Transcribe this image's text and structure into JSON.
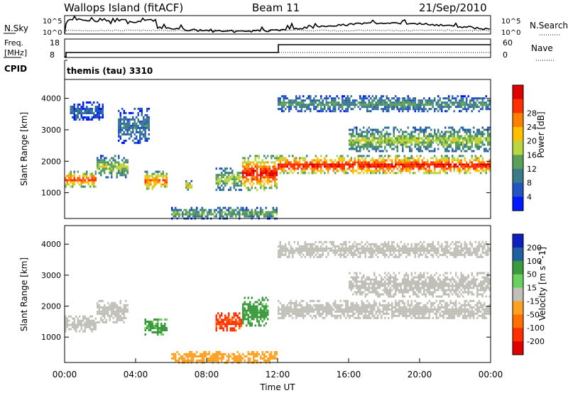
{
  "header": {
    "title": "Wallops Island (fitACF)",
    "beam": "Beam 11",
    "date": "21/Sep/2010"
  },
  "noise_panel": {
    "left_label": "N.Sky",
    "left_ticks": [
      "10^5",
      "10^0"
    ],
    "right_ticks": [
      "10^5",
      "10^0"
    ],
    "right_label": "N.Search"
  },
  "freq_panel": {
    "left_label_line1": "Freq.",
    "left_label_line2": "[MHz]",
    "left_ticks": [
      "18",
      "8"
    ],
    "right_ticks": [
      "60",
      "0"
    ],
    "right_label": "Nave"
  },
  "cpid_panel": {
    "label": "CPID",
    "value": "themis (tau) 3310"
  },
  "colors": {
    "power_scale": [
      "#0018ff",
      "#2255c0",
      "#3a7a8a",
      "#5aa05a",
      "#b8d640",
      "#ffc000",
      "#ff8000",
      "#ff3000",
      "#e00000"
    ],
    "velocity_scale": [
      "#1020c0",
      "#2060a0",
      "#3c9a3c",
      "#6ad060",
      "#c0c0b8",
      "#ffa020",
      "#ff7000",
      "#ff3000",
      "#e00000"
    ]
  },
  "chart_data": [
    {
      "type": "heatmap",
      "name": "power-panel",
      "ylabel": "Slant Range [km]",
      "ylim": [
        180,
        4600
      ],
      "y_ticks": [
        1000,
        2000,
        3000,
        4000
      ],
      "xlim": [
        0,
        24
      ],
      "colorbar": {
        "label": "Power [dB]",
        "range": [
          0,
          32
        ],
        "ticks": [
          "4",
          "8",
          "12",
          "16",
          "20",
          "24",
          "28"
        ]
      },
      "blobs": [
        {
          "t0": 0.0,
          "t1": 1.8,
          "r0": 1200,
          "r1": 1700,
          "power": 24
        },
        {
          "t0": 1.8,
          "t1": 3.6,
          "r0": 1500,
          "r1": 2200,
          "power": 14
        },
        {
          "t0": 0.3,
          "t1": 2.2,
          "r0": 3300,
          "r1": 3900,
          "power": 6
        },
        {
          "t0": 3.0,
          "t1": 4.8,
          "r0": 2600,
          "r1": 3700,
          "power": 8
        },
        {
          "t0": 4.5,
          "t1": 5.8,
          "r0": 1100,
          "r1": 1700,
          "power": 22
        },
        {
          "t0": 6.8,
          "t1": 7.2,
          "r0": 1100,
          "r1": 1400,
          "power": 18
        },
        {
          "t0": 8.5,
          "t1": 10.0,
          "r0": 1100,
          "r1": 1800,
          "power": 14
        },
        {
          "t0": 10.0,
          "t1": 12.0,
          "r0": 1100,
          "r1": 2200,
          "power": 26
        },
        {
          "t0": 12.0,
          "t1": 24.0,
          "r0": 1600,
          "r1": 2200,
          "power": 26
        },
        {
          "t0": 16.0,
          "t1": 24.0,
          "r0": 2300,
          "r1": 3100,
          "power": 14
        },
        {
          "t0": 12.0,
          "t1": 24.0,
          "r0": 3600,
          "r1": 4100,
          "power": 10
        },
        {
          "t0": 6.0,
          "t1": 12.0,
          "r0": 200,
          "r1": 550,
          "power": 12
        }
      ]
    },
    {
      "type": "heatmap",
      "name": "velocity-panel",
      "xlabel": "Time UT",
      "ylabel": "Slant Range [km]",
      "ylim": [
        180,
        4600
      ],
      "y_ticks": [
        1000,
        2000,
        3000,
        4000
      ],
      "xlim": [
        0,
        24
      ],
      "x_ticks": [
        "00:00",
        "04:00",
        "08:00",
        "12:00",
        "16:00",
        "20:00",
        "00:00"
      ],
      "colorbar": {
        "label": "Velocity [m s^-1]",
        "ticks": [
          "200",
          "100",
          "50",
          "15",
          "-15",
          "-50",
          "-100",
          "-200"
        ]
      },
      "blobs": [
        {
          "t0": 0.0,
          "t1": 1.8,
          "r0": 1200,
          "r1": 1700,
          "vel": 0
        },
        {
          "t0": 1.8,
          "t1": 3.6,
          "r0": 1500,
          "r1": 2200,
          "vel": 0
        },
        {
          "t0": 4.5,
          "t1": 5.8,
          "r0": 1100,
          "r1": 1600,
          "vel": 40
        },
        {
          "t0": 8.5,
          "t1": 10.0,
          "r0": 1200,
          "r1": 1800,
          "vel": -110
        },
        {
          "t0": 10.0,
          "t1": 11.5,
          "r0": 1400,
          "r1": 2300,
          "vel": 45
        },
        {
          "t0": 12.0,
          "t1": 24.0,
          "r0": 1600,
          "r1": 2200,
          "vel": 0
        },
        {
          "t0": 16.0,
          "t1": 24.0,
          "r0": 2300,
          "r1": 3100,
          "vel": 0
        },
        {
          "t0": 12.0,
          "t1": 24.0,
          "r0": 3600,
          "r1": 4100,
          "vel": 0
        },
        {
          "t0": 6.0,
          "t1": 12.0,
          "r0": 200,
          "r1": 550,
          "vel": -30
        }
      ]
    }
  ]
}
